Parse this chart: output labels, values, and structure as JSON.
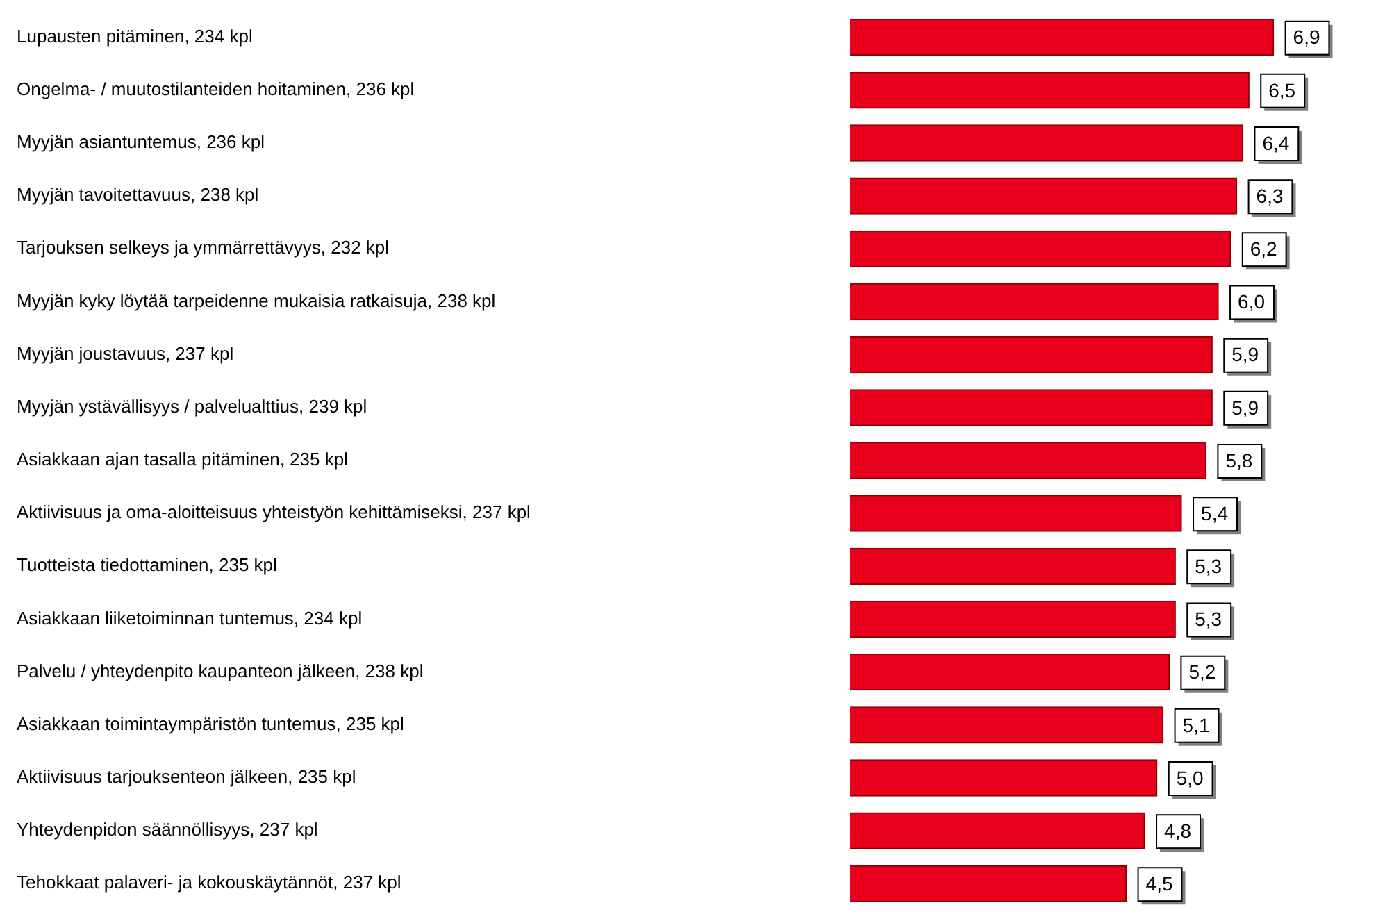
{
  "chart_data": {
    "type": "bar",
    "orientation": "horizontal",
    "categories": [
      "Lupausten pitäminen, 234 kpl",
      "Ongelma- / muutostilanteiden hoitaminen, 236 kpl",
      "Myyjän asiantuntemus, 236 kpl",
      "Myyjän tavoitettavuus, 238 kpl",
      "Tarjouksen selkeys ja ymmärrettävyys, 232 kpl",
      "Myyjän kyky löytää tarpeidenne mukaisia ratkaisuja, 238 kpl",
      "Myyjän joustavuus, 237 kpl",
      "Myyjän ystävällisyys / palvelualttius, 239 kpl",
      "Asiakkaan ajan tasalla pitäminen, 235 kpl",
      "Aktiivisuus ja oma-aloitteisuus yhteistyön kehittämiseksi, 237 kpl",
      "Tuotteista tiedottaminen, 235 kpl",
      "Asiakkaan liiketoiminnan tuntemus, 234 kpl",
      "Palvelu / yhteydenpito kaupanteon jälkeen, 238 kpl",
      "Asiakkaan toimintaympäristön tuntemus, 235 kpl",
      "Aktiivisuus tarjouksenteon jälkeen, 235 kpl",
      "Yhteydenpidon säännöllisyys, 237 kpl",
      "Tehokkaat palaveri- ja kokouskäytännöt, 237 kpl"
    ],
    "values": [
      6.9,
      6.5,
      6.4,
      6.3,
      6.2,
      6.0,
      5.9,
      5.9,
      5.8,
      5.4,
      5.3,
      5.3,
      5.2,
      5.1,
      5.0,
      4.8,
      4.5
    ],
    "value_labels": [
      "6,9",
      "6,5",
      "6,4",
      "6,3",
      "6,2",
      "6,0",
      "5,9",
      "5,9",
      "5,8",
      "5,4",
      "5,3",
      "5,3",
      "5,2",
      "5,1",
      "5,0",
      "4,8",
      "4,5"
    ],
    "color": "#e8001c",
    "legend": false
  }
}
